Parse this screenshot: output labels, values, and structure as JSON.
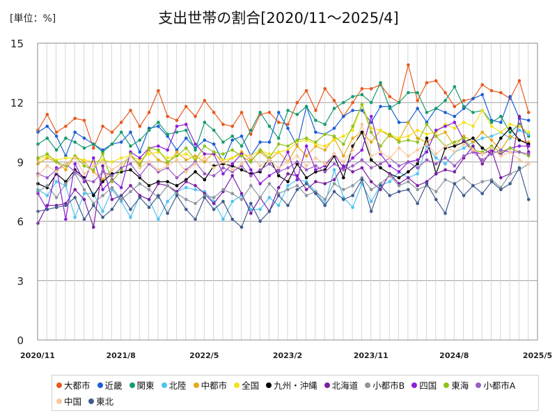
{
  "header": {
    "unit_label": "[単位：%]",
    "title": "支出世帯の割合[2020/11～2025/4]"
  },
  "chart_data": {
    "type": "line",
    "title": "支出世帯の割合[2020/11～2025/4]",
    "ylabel": "[単位：%]",
    "xlabel": "",
    "ylim": [
      0,
      15
    ],
    "yticks": [
      "0",
      "3",
      "6",
      "9",
      "12",
      "15"
    ],
    "xticks": [
      "2020/11",
      "2021/8",
      "2022/5",
      "2023/2",
      "2023/11",
      "2024/8",
      "2025/5"
    ],
    "grid": true,
    "legend_position": "bottom",
    "series": [
      {
        "name": "大都市",
        "color": "#e8581c",
        "values": [
          10.6,
          11.4,
          10.5,
          10.8,
          11.2,
          11.1,
          9.7,
          10.8,
          10.5,
          11.0,
          11.6,
          10.8,
          11.5,
          12.6,
          11.3,
          11.1,
          11.8,
          11.3,
          12.1,
          11.5,
          10.9,
          10.8,
          11.5,
          10.4,
          11.4,
          11.5,
          11.0,
          10.9,
          12.0,
          12.6,
          11.6,
          12.7,
          12.1,
          11.3,
          12.0,
          12.7,
          12.7,
          12.9,
          12.3,
          12.0,
          13.9,
          12.1,
          13.0,
          13.1,
          12.5,
          11.8,
          12.1,
          12.2,
          12.9,
          12.6,
          12.5,
          12.2,
          13.1,
          11.5
        ]
      },
      {
        "name": "近畿",
        "color": "#1a5fd6",
        "values": [
          10.5,
          10.8,
          10.3,
          9.3,
          10.5,
          10.2,
          9.9,
          9.6,
          9.9,
          10.0,
          10.5,
          9.5,
          10.7,
          10.8,
          10.3,
          9.6,
          10.2,
          9.7,
          10.1,
          9.9,
          9.0,
          10.1,
          10.3,
          9.3,
          10.0,
          10.0,
          11.5,
          10.7,
          9.8,
          11.8,
          10.5,
          10.4,
          10.7,
          11.3,
          11.6,
          11.6,
          11.0,
          11.8,
          11.8,
          11.0,
          11.0,
          11.7,
          11.0,
          11.7,
          11.5,
          11.3,
          11.7,
          12.2,
          12.4,
          11.1,
          11.0,
          12.3,
          11.2,
          11.1
        ]
      },
      {
        "name": "関東",
        "color": "#169b6c",
        "values": [
          9.9,
          10.2,
          9.6,
          10.2,
          10.0,
          9.7,
          9.9,
          9.5,
          9.9,
          10.5,
          9.8,
          10.1,
          10.6,
          11.0,
          10.4,
          10.5,
          10.6,
          9.6,
          11.0,
          10.6,
          10.0,
          10.3,
          9.8,
          10.6,
          11.5,
          10.8,
          10.2,
          11.6,
          11.4,
          11.8,
          11.1,
          10.9,
          11.7,
          12.0,
          12.3,
          12.4,
          12.0,
          13.0,
          11.7,
          12.0,
          12.5,
          12.5,
          11.5,
          11.7,
          12.1,
          12.8,
          11.8,
          11.5,
          11.6,
          11.0,
          11.3,
          10.5,
          10.9,
          10.3
        ]
      },
      {
        "name": "北陸",
        "color": "#4fc3f0",
        "values": [
          7.6,
          7.3,
          8.0,
          7.8,
          6.2,
          7.4,
          7.4,
          6.5,
          7.6,
          7.0,
          6.2,
          7.3,
          7.1,
          6.1,
          7.0,
          7.5,
          7.7,
          7.6,
          7.5,
          7.0,
          6.1,
          7.0,
          7.3,
          6.6,
          6.6,
          7.2,
          6.8,
          7.8,
          8.1,
          8.0,
          7.5,
          6.9,
          8.6,
          7.2,
          6.7,
          7.9,
          7.0,
          7.8,
          8.0,
          8.5,
          8.2,
          8.4,
          9.8,
          9.2,
          8.9,
          9.5,
          9.7,
          10.0,
          10.2,
          10.3,
          10.5,
          10.2,
          10.6,
          10.4
        ]
      },
      {
        "name": "中都市",
        "color": "#e8a817",
        "values": [
          8.9,
          9.2,
          9.0,
          8.6,
          9.3,
          9.0,
          8.5,
          8.1,
          8.6,
          8.9,
          9.3,
          8.9,
          9.6,
          9.1,
          8.9,
          9.5,
          9.1,
          9.3,
          9.0,
          9.5,
          8.9,
          9.2,
          9.5,
          9.1,
          9.5,
          9.1,
          9.5,
          9.0,
          9.8,
          9.3,
          9.8,
          9.6,
          10.2,
          9.3,
          10.2,
          10.5,
          10.0,
          10.6,
          10.3,
          10.1,
          11.0,
          10.2,
          10.0,
          10.3,
          10.5,
          9.8,
          10.3,
          10.0,
          10.5,
          10.1,
          9.6,
          10.3,
          10.1,
          10.0
        ]
      },
      {
        "name": "全国",
        "color": "#f2e21c",
        "values": [
          9.1,
          9.3,
          9.1,
          9.2,
          9.2,
          9.1,
          9.0,
          9.1,
          9.0,
          9.2,
          9.3,
          9.1,
          9.4,
          9.5,
          9.2,
          9.3,
          9.4,
          9.1,
          9.4,
          9.4,
          9.1,
          9.2,
          9.4,
          9.3,
          9.6,
          9.4,
          9.5,
          9.6,
          10.0,
          10.1,
          9.9,
          9.8,
          10.1,
          10.3,
          10.6,
          11.9,
          10.7,
          10.6,
          10.4,
          10.2,
          10.3,
          10.6,
          10.4,
          10.5,
          10.9,
          10.7,
          11.0,
          10.8,
          11.6,
          10.8,
          10.5,
          10.9,
          10.8,
          10.5
        ]
      },
      {
        "name": "九州・沖縄",
        "color": "#000000",
        "values": [
          7.9,
          7.7,
          8.4,
          8.0,
          8.6,
          8.2,
          7.3,
          8.0,
          8.4,
          8.5,
          8.6,
          8.2,
          7.8,
          8.0,
          8.0,
          7.8,
          8.1,
          8.5,
          8.1,
          8.8,
          8.9,
          8.8,
          8.6,
          8.4,
          8.5,
          9.2,
          8.3,
          8.0,
          8.9,
          8.2,
          8.5,
          8.6,
          9.3,
          8.2,
          9.8,
          10.5,
          9.1,
          8.7,
          8.4,
          8.2,
          8.5,
          8.9,
          10.2,
          8.4,
          9.7,
          9.8,
          10.0,
          10.2,
          9.7,
          9.4,
          10.2,
          10.7,
          10.1,
          9.9
        ]
      },
      {
        "name": "北海道",
        "color": "#7a1fa2",
        "values": [
          5.9,
          6.8,
          6.8,
          6.9,
          7.6,
          7.1,
          5.7,
          8.8,
          7.1,
          7.3,
          7.8,
          7.3,
          7.1,
          7.9,
          7.8,
          7.5,
          8.0,
          7.8,
          7.4,
          6.9,
          7.5,
          8.3,
          7.4,
          6.4,
          7.2,
          6.5,
          7.7,
          8.4,
          8.3,
          7.6,
          8.0,
          7.9,
          8.1,
          8.8,
          8.5,
          8.7,
          8.0,
          7.6,
          8.4,
          7.9,
          8.2,
          7.8,
          8.0,
          8.4,
          8.6,
          8.5,
          9.2,
          9.8,
          8.9,
          9.6,
          8.2,
          8.4,
          11.3,
          9.5
        ]
      },
      {
        "name": "小都市B",
        "color": "#8c959e",
        "values": [
          7.5,
          7.8,
          7.2,
          7.9,
          8.4,
          7.6,
          6.9,
          7.3,
          7.7,
          7.1,
          7.5,
          7.9,
          7.6,
          7.2,
          7.8,
          7.4,
          7.1,
          6.9,
          7.3,
          7.2,
          7.6,
          7.4,
          7.1,
          7.8,
          7.2,
          7.9,
          7.4,
          7.6,
          7.8,
          7.3,
          7.5,
          7.1,
          7.9,
          7.6,
          7.8,
          8.2,
          7.6,
          7.9,
          8.3,
          7.8,
          8.0,
          7.6,
          7.8,
          7.5,
          8.1,
          7.9,
          8.2,
          7.8,
          8.0,
          8.1,
          7.7,
          8.4,
          8.6,
          8.9
        ]
      },
      {
        "name": "四国",
        "color": "#8b1fd8",
        "values": [
          7.4,
          6.6,
          8.7,
          6.1,
          8.9,
          8.0,
          9.2,
          7.6,
          8.1,
          7.7,
          9.5,
          9.2,
          9.7,
          9.8,
          9.6,
          10.8,
          10.9,
          9.9,
          9.4,
          9.4,
          8.4,
          8.9,
          9.4,
          8.6,
          7.9,
          8.3,
          8.6,
          9.5,
          8.1,
          9.8,
          8.6,
          8.8,
          9.4,
          8.7,
          9.2,
          9.6,
          11.3,
          9.4,
          8.8,
          8.5,
          9.0,
          9.1,
          9.5,
          10.6,
          10.8,
          11.0,
          10.1,
          9.5,
          9.4,
          9.6,
          9.4,
          9.7,
          9.8,
          9.8
        ]
      },
      {
        "name": "東海",
        "color": "#8ec21b",
        "values": [
          9.2,
          9.4,
          9.0,
          8.8,
          9.3,
          8.8,
          8.6,
          9.4,
          8.0,
          8.6,
          9.4,
          8.8,
          9.7,
          9.6,
          9.0,
          9.3,
          9.7,
          9.1,
          9.8,
          9.5,
          9.4,
          9.6,
          9.3,
          9.0,
          9.6,
          9.2,
          9.9,
          9.8,
          10.1,
          10.2,
          10.0,
          10.4,
          10.3,
          9.9,
          10.8,
          11.9,
          10.5,
          9.8,
          10.4,
          10.0,
          10.1,
          10.0,
          10.9,
          10.3,
          9.8,
          10.0,
          10.2,
          9.6,
          9.5,
          9.8,
          9.5,
          9.7,
          9.5,
          9.3
        ]
      },
      {
        "name": "小都市A",
        "color": "#9b5cc4",
        "values": [
          8.4,
          8.2,
          8.6,
          8.9,
          8.5,
          8.1,
          8.0,
          8.5,
          8.3,
          8.7,
          8.9,
          8.3,
          8.9,
          8.5,
          8.7,
          8.2,
          8.6,
          9.0,
          8.4,
          8.3,
          8.7,
          8.5,
          8.8,
          8.3,
          8.6,
          8.9,
          8.5,
          8.7,
          9.0,
          8.6,
          8.8,
          8.5,
          8.9,
          8.6,
          8.8,
          9.1,
          8.7,
          8.9,
          9.2,
          8.8,
          9.0,
          8.7,
          9.1,
          8.9,
          9.2,
          8.8,
          9.3,
          9.5,
          9.1,
          9.4,
          9.6,
          9.5,
          9.5,
          9.4
        ]
      },
      {
        "name": "中国",
        "color": "#f6c89a",
        "values": [
          8.3,
          8.8,
          8.5,
          8.9,
          9.2,
          8.4,
          8.8,
          9.0,
          8.6,
          8.9,
          9.3,
          8.7,
          9.0,
          8.6,
          8.8,
          9.1,
          8.5,
          8.9,
          9.2,
          8.7,
          9.0,
          8.6,
          8.9,
          9.3,
          8.8,
          9.1,
          8.7,
          9.0,
          9.3,
          8.8,
          9.2,
          8.9,
          9.4,
          9.0,
          9.6,
          10.9,
          9.3,
          9.5,
          9.2,
          9.7,
          9.3,
          9.6,
          9.9,
          9.4,
          9.8,
          9.5,
          9.9,
          9.6,
          9.4,
          9.7,
          9.3,
          9.5,
          9.1,
          8.9
        ]
      },
      {
        "name": "東北",
        "color": "#3e5b8e",
        "values": [
          6.5,
          6.6,
          6.7,
          6.8,
          7.2,
          6.1,
          6.8,
          6.2,
          6.6,
          7.3,
          6.6,
          7.2,
          6.7,
          7.3,
          6.4,
          7.3,
          6.6,
          6.1,
          7.2,
          6.6,
          7.0,
          6.1,
          5.7,
          6.9,
          6.0,
          6.5,
          7.3,
          6.8,
          7.6,
          7.9,
          7.4,
          6.8,
          7.5,
          7.1,
          7.3,
          8.1,
          6.5,
          7.8,
          7.3,
          7.5,
          7.6,
          6.9,
          7.9,
          7.1,
          6.4,
          7.9,
          7.3,
          7.8,
          7.4,
          8.0,
          7.6,
          7.9,
          8.7,
          7.1
        ]
      }
    ]
  }
}
